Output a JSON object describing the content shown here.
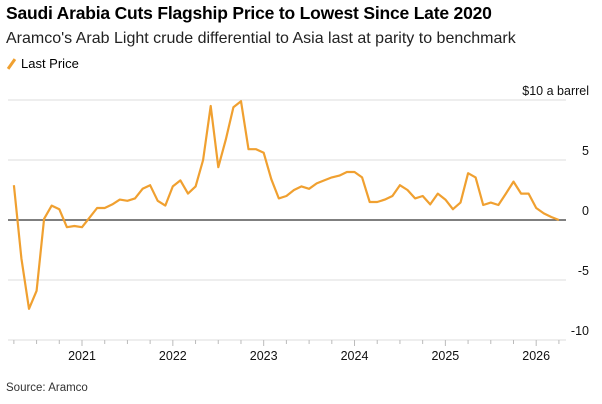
{
  "header": {
    "title": "Saudi Arabia Cuts Flagship Price to Lowest Since Late 2020",
    "subtitle": "Aramco's Arab Light crude differential to Asia last at parity to benchmark"
  },
  "footer": {
    "source": "Source: Aramco"
  },
  "colors": {
    "line": "#f0a030",
    "grid": "#dddddd",
    "zero": "#555555"
  },
  "chart_data": {
    "type": "line",
    "title": "Saudi Arabia Cuts Flagship Price to Lowest Since Late 2020",
    "subtitle": "Aramco's Arab Light crude differential to Asia last at parity to benchmark",
    "ylabel": "$10 a barrel",
    "ylim": [
      -10,
      10
    ],
    "yticks": [
      {
        "value": 10,
        "label": "$10 a barrel"
      },
      {
        "value": 5,
        "label": "5"
      },
      {
        "value": 0,
        "label": "0"
      },
      {
        "value": -5,
        "label": "-5"
      },
      {
        "value": -10,
        "label": "-10"
      }
    ],
    "xticks": [
      "2021",
      "2022",
      "2023",
      "2024",
      "2025",
      "2026"
    ],
    "legend": {
      "position": "top-left",
      "entries": [
        "Last Price"
      ]
    },
    "start_month": "2020-04",
    "series": [
      {
        "name": "Last Price",
        "values": [
          2.9,
          -3.2,
          -7.4,
          -5.9,
          0.1,
          1.2,
          0.9,
          -0.6,
          -0.5,
          -0.6,
          0.2,
          1.0,
          1.0,
          1.3,
          1.7,
          1.6,
          1.8,
          2.6,
          2.9,
          1.6,
          1.2,
          2.8,
          3.3,
          2.2,
          2.8,
          5.0,
          9.5,
          4.4,
          6.7,
          9.4,
          9.9,
          5.9,
          5.9,
          5.6,
          3.4,
          1.8,
          2.0,
          2.5,
          2.8,
          2.6,
          3.05,
          3.3,
          3.55,
          3.7,
          4.0,
          4.0,
          3.55,
          1.5,
          1.5,
          1.7,
          2.0,
          2.9,
          2.5,
          1.8,
          2.0,
          1.3,
          2.2,
          1.7,
          0.9,
          1.45,
          3.9,
          3.55,
          1.25,
          1.45,
          1.25,
          2.2,
          3.2,
          2.2,
          2.2,
          1.0,
          0.55,
          0.25,
          0.0
        ]
      }
    ]
  }
}
